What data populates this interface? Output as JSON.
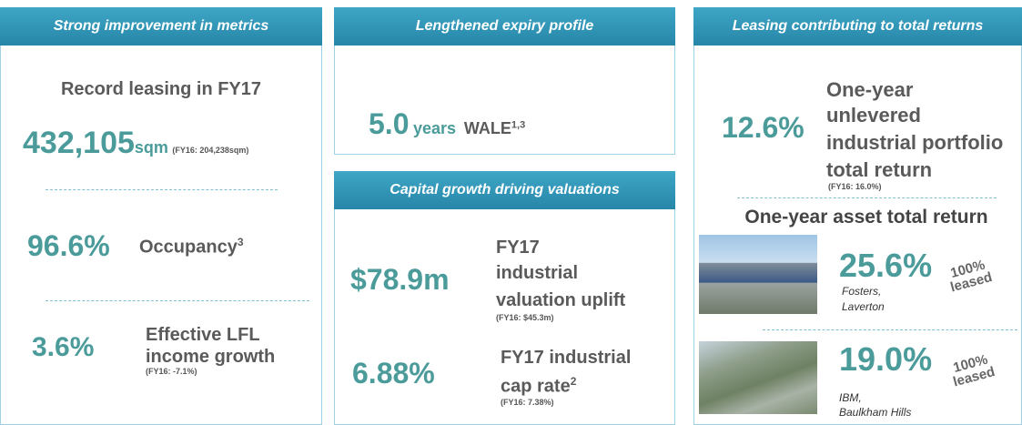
{
  "panels": [
    {
      "header": "Strong improvement in metrics",
      "leasing": {
        "title": "Record leasing in FY17",
        "value": "432,105",
        "unit": "sqm",
        "note": "(FY16: 204,238sqm)"
      },
      "occupancy": {
        "value": "96.6%",
        "label": "Occupancy",
        "sup": "3"
      },
      "income": {
        "value": "3.6%",
        "lines": [
          "Effective LFL",
          "income growth"
        ],
        "note": "(FY16: -7.1%)"
      }
    },
    {
      "header": "Lengthened expiry profile",
      "wale": {
        "value": "5.0",
        "unit": "years",
        "label": "WALE",
        "sup": "1,3"
      },
      "header2": "Capital growth driving valuations",
      "uplift": {
        "value": "$78.9m",
        "lines": [
          "FY17",
          "industrial",
          "valuation uplift"
        ],
        "note": "(FY16: $45.3m)"
      },
      "caprate": {
        "value": "6.88%",
        "lines": [
          "FY17 industrial",
          "cap rate"
        ],
        "sup": "2",
        "note": "(FY16: 7.38%)"
      }
    },
    {
      "header": "Leasing contributing to total returns",
      "portfolio": {
        "value": "12.6%",
        "lines": [
          "One-year",
          "unlevered",
          "industrial portfolio",
          "total return"
        ],
        "note": "(FY16: 16.0%)"
      },
      "asset_title": "One-year asset total return",
      "assets": [
        {
          "value": "25.6%",
          "lines": [
            "Fosters,",
            "Laverton"
          ],
          "leased": [
            "100%",
            "leased"
          ]
        },
        {
          "value": "19.0%",
          "lines": [
            "IBM,",
            "Baulkham Hills"
          ],
          "leased": [
            "100%",
            "leased"
          ]
        }
      ]
    }
  ]
}
